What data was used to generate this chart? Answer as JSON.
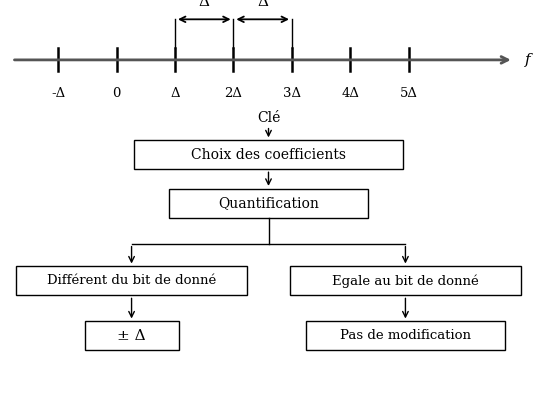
{
  "bg_color": "#ffffff",
  "tick_labels": [
    "-Δ",
    "0",
    "Δ",
    "2Δ",
    "3Δ",
    "4Δ",
    "5Δ"
  ],
  "tick_positions": [
    -1,
    0,
    1,
    2,
    3,
    4,
    5
  ],
  "f_label": "f",
  "flowchart": {
    "text_color": "#000000",
    "cle_text": "Clé",
    "box1_text": "Choix des coefficients",
    "box2_text": "Quantification",
    "box3_text": "Différent du bit de donné",
    "box4_text": "Egale au bit de donné",
    "box5_text": "± Δ",
    "box6_text": "Pas de modification"
  }
}
